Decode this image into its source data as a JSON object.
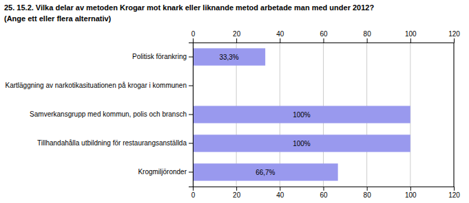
{
  "chart_data": {
    "type": "bar",
    "orientation": "horizontal",
    "title": "25. 15.2. Vilka delar av metoden Krogar mot knark eller liknande metod arbetade man med under 2012?",
    "subtitle": "(Ange ett eller flera alternativ)",
    "categories": [
      "Politisk förankring",
      "Kartläggning av narkotikasituationen på krogar i kommunen",
      "Samverkansgrupp med kommun, polis och bransch",
      "Tillhandahålla utbildning för restaurangsanställda",
      "Krogmiljöronder"
    ],
    "values": [
      33.3,
      0.0,
      100.0,
      100.0,
      66.7
    ],
    "value_labels": [
      "33,3%",
      null,
      "100%",
      "100%",
      "66,7%"
    ],
    "color": "#9999ee",
    "xlim": [
      0,
      120
    ],
    "xticks": [
      0,
      20,
      40,
      60,
      80,
      100,
      120
    ],
    "grid": true
  }
}
